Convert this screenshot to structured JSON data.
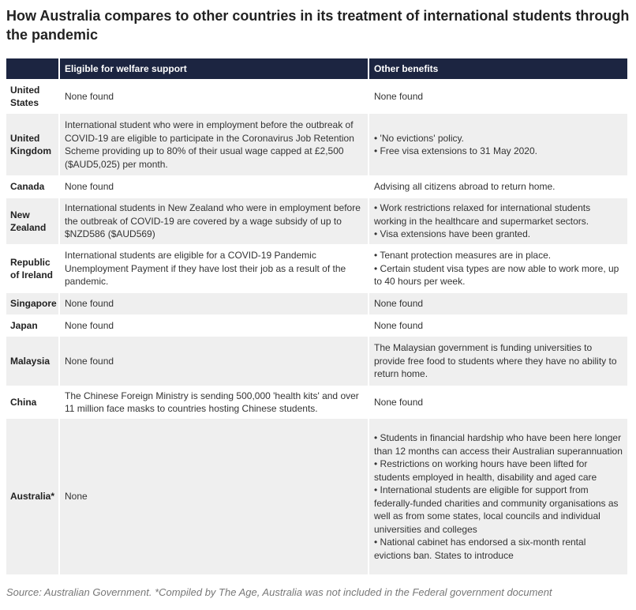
{
  "title": "How Australia compares to other countries in its treatment of international students through the pandemic",
  "headers": [
    "",
    "Eligible for welfare support",
    "Other benefits"
  ],
  "rows": [
    {
      "country": "United States",
      "welfare": "None found",
      "other": [
        "None found"
      ]
    },
    {
      "country": "United Kingdom",
      "welfare": "International student who were in employment before the outbreak of COVID-19 are eligible to participate in the Coronavirus Job Retention Scheme providing up to 80% of their usual wage capped at £2,500 ($AUD5,025) per month.",
      "other": [
        "• 'No evictions' policy.",
        "• Free visa extensions to 31 May 2020."
      ]
    },
    {
      "country": "Canada",
      "welfare": "None found",
      "other": [
        "Advising all citizens abroad to return home."
      ]
    },
    {
      "country": "New Zealand",
      "welfare": "International students in New Zealand who were in employment before the outbreak of COVID-19 are covered by a wage subsidy of up to $NZD586 ($AUD569)",
      "other": [
        "• Work restrictions relaxed for international students working in the healthcare and supermarket sectors.",
        "• Visa extensions have been granted."
      ]
    },
    {
      "country": "Republic of Ireland",
      "welfare": "International students are eligible for a COVID-19 Pandemic Unemployment Payment if they have lost their job as a result of the pandemic.",
      "other": [
        "• Tenant protection measures are in place.",
        "• Certain student visa types are now able to work more, up to 40 hours per week."
      ]
    },
    {
      "country": "Singapore",
      "welfare": "None found",
      "other": [
        "None found"
      ]
    },
    {
      "country": "Japan",
      "welfare": "None found",
      "other": [
        "None found"
      ]
    },
    {
      "country": "Malaysia",
      "welfare": "None found",
      "other": [
        "The Malaysian government is funding universities to provide free food to students where they have no ability to return home."
      ]
    },
    {
      "country": "China",
      "welfare": "The Chinese Foreign Ministry is sending 500,000 'health kits' and over 11 million face masks to countries hosting Chinese students.",
      "other": [
        "None found"
      ]
    },
    {
      "country": "Australia*",
      "welfare": "None",
      "other": [
        "• Students in financial hardship who have been here longer than 12 months can access their Australian superannuation",
        "• Restrictions on working hours have been lifted for students employed in health, disability and aged care",
        "• International students are eligible for support from federally-funded charities and community organisations as well as from some states, local councils and individual universities and colleges",
        "• National cabinet has endorsed a six-month rental evictions ban. States to introduce"
      ]
    }
  ],
  "source": "Source: Australian Government. *Compiled by The Age, Australia was not included in the Federal government document"
}
